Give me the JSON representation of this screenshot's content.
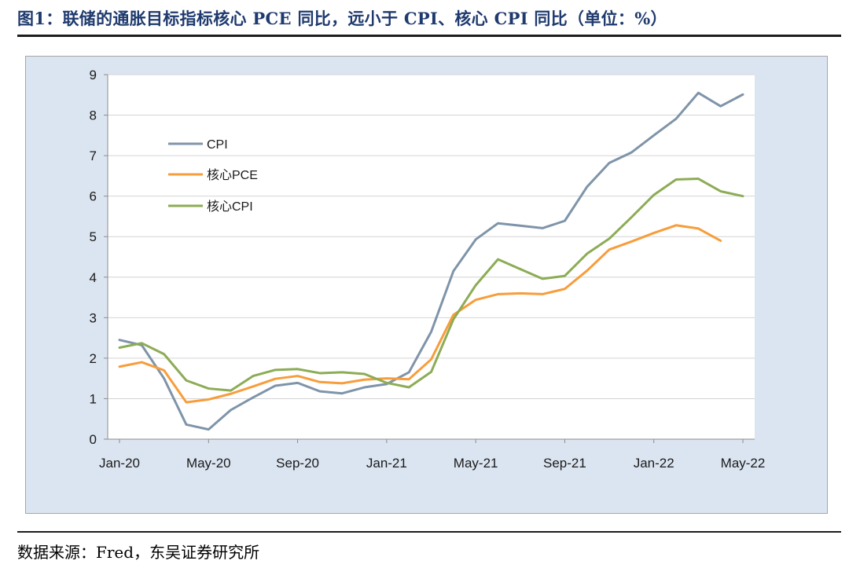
{
  "header": {
    "title": "图1：联储的通胀目标指标核心 PCE 同比，远小于 CPI、核心 CPI 同比（单位：%）"
  },
  "footer": {
    "source": "数据来源：Fred，东吴证券研究所"
  },
  "chart_data": {
    "type": "line",
    "title": "",
    "xlabel": "",
    "ylabel": "",
    "ylim": [
      0,
      9
    ],
    "yticks": [
      "0",
      "1",
      "2",
      "3",
      "4",
      "5",
      "6",
      "7",
      "8",
      "9"
    ],
    "x_tick_labels": [
      "Jan-20",
      "May-20",
      "Sep-20",
      "Jan-21",
      "May-21",
      "Sep-21",
      "Jan-22",
      "May-22"
    ],
    "x": [
      "Jan-20",
      "Feb-20",
      "Mar-20",
      "Apr-20",
      "May-20",
      "Jun-20",
      "Jul-20",
      "Aug-20",
      "Sep-20",
      "Oct-20",
      "Nov-20",
      "Dec-20",
      "Jan-21",
      "Feb-21",
      "Mar-21",
      "Apr-21",
      "May-21",
      "Jun-21",
      "Jul-21",
      "Aug-21",
      "Sep-21",
      "Oct-21",
      "Nov-21",
      "Dec-21",
      "Jan-22",
      "Feb-22",
      "Mar-22",
      "Apr-22",
      "May-22"
    ],
    "grid": true,
    "legend_position": "top-left",
    "series": [
      {
        "name": "CPI",
        "color": "#7f94a9",
        "values": [
          2.45,
          2.32,
          1.5,
          0.36,
          0.24,
          0.72,
          1.03,
          1.32,
          1.39,
          1.18,
          1.13,
          1.28,
          1.36,
          1.65,
          2.65,
          4.15,
          4.93,
          5.33,
          5.27,
          5.21,
          5.39,
          6.23,
          6.82,
          7.08,
          7.5,
          7.91,
          8.55,
          8.22,
          8.51
        ]
      },
      {
        "name": "核心PCE",
        "color": "#f79d3b",
        "values": [
          1.79,
          1.9,
          1.7,
          0.91,
          0.98,
          1.12,
          1.3,
          1.49,
          1.56,
          1.41,
          1.38,
          1.47,
          1.5,
          1.48,
          1.97,
          3.07,
          3.44,
          3.58,
          3.6,
          3.58,
          3.71,
          4.16,
          4.68,
          4.88,
          5.09,
          5.28,
          5.2,
          4.9,
          null
        ]
      },
      {
        "name": "核心CPI",
        "color": "#8cac55",
        "values": [
          2.26,
          2.37,
          2.1,
          1.45,
          1.25,
          1.2,
          1.56,
          1.71,
          1.73,
          1.63,
          1.65,
          1.61,
          1.39,
          1.28,
          1.66,
          2.96,
          3.8,
          4.44,
          4.2,
          3.96,
          4.03,
          4.58,
          4.95,
          5.48,
          6.03,
          6.41,
          6.43,
          6.12,
          6.0
        ]
      }
    ]
  }
}
